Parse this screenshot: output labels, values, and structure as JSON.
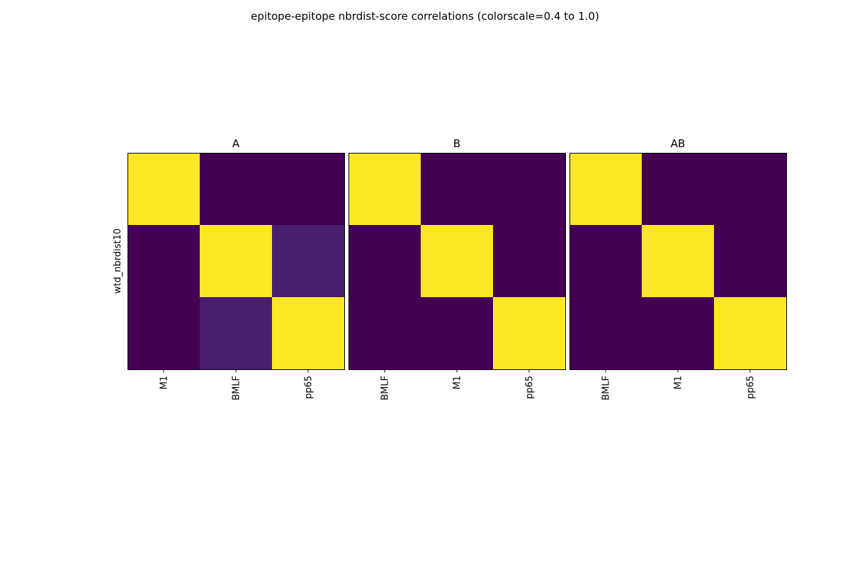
{
  "figure": {
    "title": "epitope-epitope nbrdist-score correlations (colorscale=0.4 to 1.0)"
  },
  "colors": {
    "low": "#440154",
    "high": "#fde725",
    "axes_edge": "#000000"
  },
  "chart_data": [
    {
      "type": "heatmap",
      "title": "A",
      "ylabel": "wtd_nbrdist10",
      "xlabel": "",
      "x_tick_labels": [
        "M1",
        "BMLF",
        "pp65"
      ],
      "color_scale": {
        "colormap": "viridis",
        "vmin": 0.4,
        "vmax": 1.0
      },
      "matrix": [
        [
          1.0,
          0.4,
          0.4
        ],
        [
          0.4,
          1.0,
          0.45
        ],
        [
          0.4,
          0.45,
          1.0
        ]
      ]
    },
    {
      "type": "heatmap",
      "title": "B",
      "ylabel": "",
      "xlabel": "",
      "x_tick_labels": [
        "BMLF",
        "M1",
        "pp65"
      ],
      "color_scale": {
        "colormap": "viridis",
        "vmin": 0.4,
        "vmax": 1.0
      },
      "matrix": [
        [
          1.0,
          0.4,
          0.4
        ],
        [
          0.4,
          1.0,
          0.4
        ],
        [
          0.4,
          0.4,
          1.0
        ]
      ]
    },
    {
      "type": "heatmap",
      "title": "AB",
      "ylabel": "",
      "xlabel": "",
      "x_tick_labels": [
        "BMLF",
        "M1",
        "pp65"
      ],
      "color_scale": {
        "colormap": "viridis",
        "vmin": 0.4,
        "vmax": 1.0
      },
      "matrix": [
        [
          1.0,
          0.4,
          0.4
        ],
        [
          0.4,
          1.0,
          0.4
        ],
        [
          0.4,
          0.4,
          1.0
        ]
      ]
    }
  ]
}
